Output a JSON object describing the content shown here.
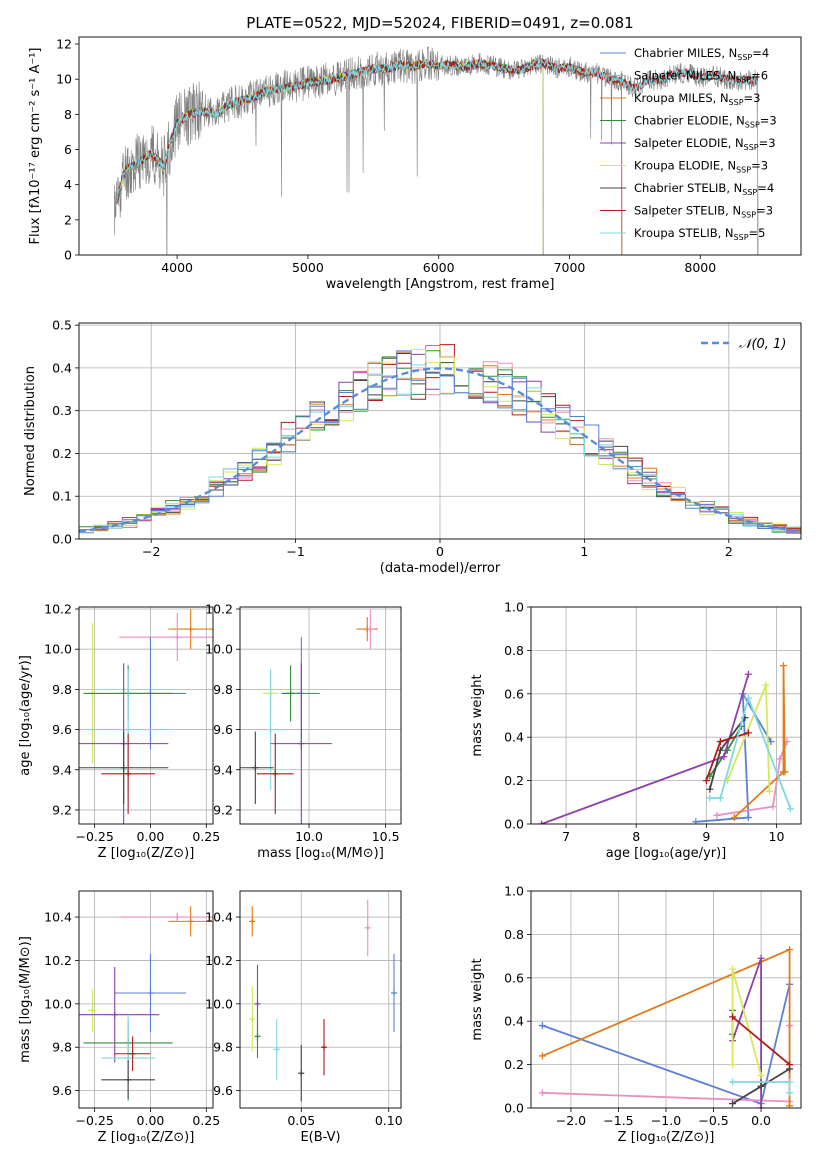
{
  "chart_data": [
    {
      "id": "spectrum",
      "type": "line",
      "title": "PLATE=0522, MJD=52024, FIBERID=0491, z=0.081",
      "xlabel": "wavelength [Angstrom, rest frame]",
      "ylabel": "Flux [fλ10⁻¹⁷ erg cm⁻² s⁻¹ A⁻¹]",
      "xlim": [
        3250,
        8770
      ],
      "ylim": [
        0,
        12.4
      ],
      "xticks": [
        4000,
        5000,
        6000,
        7000,
        8000
      ],
      "yticks": [
        0,
        2,
        4,
        6,
        8,
        10,
        12
      ],
      "grid": false,
      "legend_position": "right",
      "data_color": "#808080",
      "data_anchors": [
        [
          3520,
          2.5
        ],
        [
          3600,
          4.8
        ],
        [
          3700,
          5.2
        ],
        [
          3800,
          5.8
        ],
        [
          3900,
          5.0
        ],
        [
          3950,
          6.5
        ],
        [
          4000,
          7.5
        ],
        [
          4100,
          8.0
        ],
        [
          4200,
          8.2
        ],
        [
          4300,
          8.0
        ],
        [
          4400,
          8.6
        ],
        [
          4500,
          8.8
        ],
        [
          4600,
          9.0
        ],
        [
          4700,
          9.4
        ],
        [
          4800,
          9.5
        ],
        [
          4900,
          9.6
        ],
        [
          5000,
          9.8
        ],
        [
          5100,
          9.9
        ],
        [
          5200,
          10.0
        ],
        [
          5300,
          10.2
        ],
        [
          5400,
          10.4
        ],
        [
          5500,
          10.6
        ],
        [
          5600,
          10.6
        ],
        [
          5700,
          10.8
        ],
        [
          5800,
          10.7
        ],
        [
          5900,
          10.9
        ],
        [
          6000,
          10.8
        ],
        [
          6100,
          10.8
        ],
        [
          6200,
          10.7
        ],
        [
          6300,
          10.9
        ],
        [
          6400,
          10.8
        ],
        [
          6500,
          10.6
        ],
        [
          6600,
          10.5
        ],
        [
          6700,
          10.7
        ],
        [
          6800,
          10.9
        ],
        [
          6900,
          10.6
        ],
        [
          7000,
          10.7
        ],
        [
          7100,
          10.4
        ],
        [
          7200,
          10.4
        ],
        [
          7300,
          10.0
        ],
        [
          7400,
          9.9
        ],
        [
          7500,
          9.5
        ],
        [
          7600,
          9.9
        ],
        [
          7700,
          10.0
        ],
        [
          7800,
          10.3
        ],
        [
          7900,
          10.4
        ],
        [
          8000,
          10.1
        ],
        [
          8100,
          10.2
        ],
        [
          8200,
          10.0
        ],
        [
          8300,
          9.9
        ],
        [
          8440,
          10.0
        ]
      ],
      "model_series": [
        {
          "name": "Chabrier MILES, N_SSP=4",
          "color": "#5b7fd6",
          "xmax": 7400
        },
        {
          "name": "Salpeter MILES, N_SSP=6",
          "color": "#e98fc2",
          "xmax": 7400
        },
        {
          "name": "Kroupa MILES, N_SSP=3",
          "color": "#e07b1a",
          "xmax": 7400
        },
        {
          "name": "Chabrier ELODIE, N_SSP=3",
          "color": "#2f8f3a",
          "xmax": 6800
        },
        {
          "name": "Salpeter ELODIE, N_SSP=3",
          "color": "#8e3fa8",
          "xmax": 6800
        },
        {
          "name": "Kroupa ELODIE, N_SSP=3",
          "color": "#d4e85a",
          "xmax": 6800
        },
        {
          "name": "Chabrier STELIB, N_SSP=4",
          "color": "#444444",
          "xmax": 8440
        },
        {
          "name": "Salpeter STELIB, N_SSP=3",
          "color": "#b01a1a",
          "xmax": 8440
        },
        {
          "name": "Kroupa STELIB, N_SSP=5",
          "color": "#7fd8e0",
          "xmax": 8440
        }
      ],
      "legend_labels": [
        {
          "base": "Chabrier MILES, N",
          "sub": "SSP",
          "tail": "=4"
        },
        {
          "base": "Salpeter MILES, N",
          "sub": "SSP",
          "tail": "=6"
        },
        {
          "base": "Kroupa MILES, N",
          "sub": "SSP",
          "tail": "=3"
        },
        {
          "base": "Chabrier ELODIE, N",
          "sub": "SSP",
          "tail": "=3"
        },
        {
          "base": "Salpeter ELODIE, N",
          "sub": "SSP",
          "tail": "=3"
        },
        {
          "base": "Kroupa ELODIE, N",
          "sub": "SSP",
          "tail": "=3"
        },
        {
          "base": "Chabrier STELIB, N",
          "sub": "SSP",
          "tail": "=4"
        },
        {
          "base": "Salpeter STELIB, N",
          "sub": "SSP",
          "tail": "=3"
        },
        {
          "base": "Kroupa STELIB, N",
          "sub": "SSP",
          "tail": "=5"
        }
      ]
    },
    {
      "id": "residuals",
      "type": "line",
      "xlabel": "(data-model)/error",
      "ylabel": "Normed distribution",
      "xlim": [
        -2.5,
        2.5
      ],
      "ylim": [
        0,
        0.505
      ],
      "xticks": [
        -2,
        -1,
        0,
        1,
        2
      ],
      "yticks": [
        0.0,
        0.1,
        0.2,
        0.3,
        0.4,
        0.5
      ],
      "grid": true,
      "legend_position": "top-right",
      "gaussian": {
        "label": "𝒩(0, 1)",
        "mean": 0,
        "sigma": 1,
        "color": "#5b8bd6"
      },
      "bin_width": 0.1,
      "hist_series": [
        {
          "color": "#444444",
          "seed": 1
        },
        {
          "color": "#b01a1a",
          "seed": 2
        },
        {
          "color": "#8e3fa8",
          "seed": 3
        },
        {
          "color": "#e98fc2",
          "seed": 4
        },
        {
          "color": "#e07b1a",
          "seed": 5
        },
        {
          "color": "#2f8f3a",
          "seed": 6
        },
        {
          "color": "#d4e85a",
          "seed": 7
        },
        {
          "color": "#7fd8e0",
          "seed": 8
        },
        {
          "color": "#5b7fd6",
          "seed": 9
        }
      ]
    },
    {
      "id": "age_vs_Z",
      "type": "scatter",
      "xlabel": "Z [log₁₀(Z/Z⊙)]",
      "ylabel": "age  [log₁₀(age/yr)]",
      "xlim": [
        -0.32,
        0.28
      ],
      "ylim": [
        9.13,
        10.21
      ],
      "xticks": [
        -0.25,
        0.0,
        0.25
      ],
      "xtick_labels": [
        "−0.25",
        "0.00",
        "0.25"
      ],
      "yticks": [
        9.2,
        9.4,
        9.6,
        9.8,
        10.0,
        10.2
      ],
      "grid": true,
      "points": [
        {
          "color": "#e07b1a",
          "x": 0.18,
          "xerr": 0.1,
          "y": 10.1,
          "yerr": 0.1
        },
        {
          "color": "#e98fc2",
          "x": 0.12,
          "xerr": 0.26,
          "y": 10.06,
          "yerr": 0.12
        },
        {
          "color": "#5b7fd6",
          "x": 0.0,
          "xerr": 0.16,
          "y": 9.78,
          "yerr": 0.28
        },
        {
          "color": "#d4e85a",
          "x": -0.26,
          "xerr": 0.02,
          "y": 9.78,
          "yerr": 0.35
        },
        {
          "color": "#2f8f3a",
          "x": -0.1,
          "xerr": 0.2,
          "y": 9.78,
          "yerr": 0.14
        },
        {
          "color": "#7fd8e0",
          "x": -0.1,
          "xerr": 0.2,
          "y": 9.6,
          "yerr": 0.3
        },
        {
          "color": "#8e3fa8",
          "x": -0.12,
          "xerr": 0.2,
          "y": 9.53,
          "yerr": 0.4
        },
        {
          "color": "#444444",
          "x": -0.12,
          "xerr": 0.2,
          "y": 9.41,
          "yerr": 0.18
        },
        {
          "color": "#b01a1a",
          "x": -0.1,
          "xerr": 0.12,
          "y": 9.38,
          "yerr": 0.2
        }
      ]
    },
    {
      "id": "age_vs_mass",
      "type": "scatter",
      "xlabel": "mass [log₁₀(M/M⊙)]",
      "xlim": [
        9.55,
        10.6
      ],
      "ylim": [
        9.13,
        10.21
      ],
      "xticks": [
        10.0,
        10.5
      ],
      "xtick_labels": [
        "10.0",
        "10.5"
      ],
      "yticks": [
        9.2,
        9.4,
        9.6,
        9.8,
        10.0,
        10.2
      ],
      "grid": true,
      "points": [
        {
          "color": "#e07b1a",
          "x": 10.38,
          "xerr": 0.07,
          "y": 10.1,
          "yerr": 0.06
        },
        {
          "color": "#e98fc2",
          "x": 10.4,
          "xerr": 0.02,
          "y": 10.1,
          "yerr": 0.1
        },
        {
          "color": "#5b7fd6",
          "x": 9.95,
          "xerr": 0.12,
          "y": 9.78,
          "yerr": 0.28
        },
        {
          "color": "#d4e85a",
          "x": 9.75,
          "xerr": 0.05,
          "y": 9.78,
          "yerr": 0.1
        },
        {
          "color": "#2f8f3a",
          "x": 9.88,
          "xerr": 0.06,
          "y": 9.78,
          "yerr": 0.14
        },
        {
          "color": "#7fd8e0",
          "x": 9.75,
          "xerr": 0.1,
          "y": 9.6,
          "yerr": 0.3
        },
        {
          "color": "#8e3fa8",
          "x": 9.95,
          "xerr": 0.2,
          "y": 9.53,
          "yerr": 0.4
        },
        {
          "color": "#444444",
          "x": 9.65,
          "xerr": 0.12,
          "y": 9.41,
          "yerr": 0.18
        },
        {
          "color": "#b01a1a",
          "x": 9.78,
          "xerr": 0.12,
          "y": 9.38,
          "yerr": 0.2
        }
      ]
    },
    {
      "id": "mass_weight_vs_age",
      "type": "line",
      "xlabel": "age  [log₁₀(age/yr)]",
      "ylabel": "mass weight",
      "xlim": [
        6.5,
        10.35
      ],
      "ylim": [
        0,
        1
      ],
      "xticks": [
        7,
        8,
        9,
        10
      ],
      "yticks": [
        0.0,
        0.2,
        0.4,
        0.6,
        0.8,
        1.0
      ],
      "grid": true,
      "series": [
        {
          "color": "#5b7fd6",
          "x": [
            8.85,
            9.6,
            9.52,
            9.92
          ],
          "y": [
            0.01,
            0.03,
            0.6,
            0.38
          ]
        },
        {
          "color": "#e98fc2",
          "x": [
            9.15,
            9.95,
            10.05,
            10.15
          ],
          "y": [
            0.04,
            0.08,
            0.3,
            0.38
          ]
        },
        {
          "color": "#e07b1a",
          "x": [
            9.4,
            10.1,
            10.1,
            10.12
          ],
          "y": [
            0.03,
            0.24,
            0.73,
            0.24
          ]
        },
        {
          "color": "#2f8f3a",
          "x": [
            9.05,
            9.3,
            9.5
          ],
          "y": [
            0.22,
            0.34,
            0.45
          ]
        },
        {
          "color": "#8e3fa8",
          "x": [
            6.65,
            9.25,
            9.6
          ],
          "y": [
            0.0,
            0.31,
            0.69
          ]
        },
        {
          "color": "#d4e85a",
          "x": [
            9.3,
            9.85,
            9.9
          ],
          "y": [
            0.2,
            0.64,
            0.15
          ]
        },
        {
          "color": "#444444",
          "x": [
            9.05,
            9.2,
            9.55
          ],
          "y": [
            0.16,
            0.34,
            0.49
          ]
        },
        {
          "color": "#b01a1a",
          "x": [
            9.0,
            9.2,
            9.6
          ],
          "y": [
            0.2,
            0.38,
            0.42
          ]
        },
        {
          "color": "#7fd8e0",
          "x": [
            9.05,
            9.2,
            9.6,
            10.2
          ],
          "y": [
            0.12,
            0.12,
            0.58,
            0.07
          ]
        }
      ]
    },
    {
      "id": "mass_vs_Z",
      "type": "scatter",
      "xlabel": "Z [log₁₀(Z/Z⊙)]",
      "ylabel": "mass [log₁₀(M/M⊙)]",
      "xlim": [
        -0.32,
        0.28
      ],
      "ylim": [
        9.52,
        10.52
      ],
      "xticks": [
        -0.25,
        0.0,
        0.25
      ],
      "xtick_labels": [
        "−0.25",
        "0.00",
        "0.25"
      ],
      "yticks": [
        9.6,
        9.8,
        10.0,
        10.2,
        10.4
      ],
      "grid": true,
      "points": [
        {
          "color": "#e07b1a",
          "x": 0.18,
          "xerr": 0.1,
          "y": 10.38,
          "yerr": 0.07
        },
        {
          "color": "#e98fc2",
          "x": 0.12,
          "xerr": 0.26,
          "y": 10.4,
          "yerr": 0.02
        },
        {
          "color": "#5b7fd6",
          "x": 0.0,
          "xerr": 0.16,
          "y": 10.05,
          "yerr": 0.18
        },
        {
          "color": "#d4e85a",
          "x": -0.26,
          "xerr": 0.02,
          "y": 9.97,
          "yerr": 0.1
        },
        {
          "color": "#8e3fa8",
          "x": -0.16,
          "xerr": 0.2,
          "y": 9.95,
          "yerr": 0.22
        },
        {
          "color": "#2f8f3a",
          "x": -0.1,
          "xerr": 0.2,
          "y": 9.82,
          "yerr": 0.1
        },
        {
          "color": "#7fd8e0",
          "x": -0.1,
          "xerr": 0.12,
          "y": 9.75,
          "yerr": 0.2
        },
        {
          "color": "#b01a1a",
          "x": -0.08,
          "xerr": 0.08,
          "y": 9.77,
          "yerr": 0.08
        },
        {
          "color": "#444444",
          "x": -0.1,
          "xerr": 0.12,
          "y": 9.65,
          "yerr": 0.09
        }
      ]
    },
    {
      "id": "mass_vs_ebv",
      "type": "scatter",
      "xlabel": "E(B-V)",
      "xlim": [
        0.015,
        0.107
      ],
      "ylim": [
        9.52,
        10.52
      ],
      "xticks": [
        0.05,
        0.1
      ],
      "xtick_labels": [
        "0.05",
        "0.10"
      ],
      "yticks": [
        9.6,
        9.8,
        10.0,
        10.2,
        10.4
      ],
      "grid": true,
      "points": [
        {
          "color": "#e07b1a",
          "x": 0.022,
          "xerr": 0,
          "y": 10.38,
          "yerr": 0.07
        },
        {
          "color": "#e98fc2",
          "x": 0.088,
          "xerr": 0,
          "y": 10.35,
          "yerr": 0.13
        },
        {
          "color": "#5b7fd6",
          "x": 0.103,
          "xerr": 0,
          "y": 10.05,
          "yerr": 0.18
        },
        {
          "color": "#8e3fa8",
          "x": 0.025,
          "xerr": 0,
          "y": 10.0,
          "yerr": 0.18
        },
        {
          "color": "#d4e85a",
          "x": 0.022,
          "xerr": 0,
          "y": 9.93,
          "yerr": 0.15
        },
        {
          "color": "#2f8f3a",
          "x": 0.025,
          "xerr": 0,
          "y": 9.85,
          "yerr": 0.1
        },
        {
          "color": "#7fd8e0",
          "x": 0.036,
          "xerr": 0,
          "y": 9.79,
          "yerr": 0.14
        },
        {
          "color": "#b01a1a",
          "x": 0.063,
          "xerr": 0,
          "y": 9.8,
          "yerr": 0.13
        },
        {
          "color": "#444444",
          "x": 0.05,
          "xerr": 0,
          "y": 9.68,
          "yerr": 0.13
        }
      ]
    },
    {
      "id": "mass_weight_vs_Z",
      "type": "line",
      "xlabel": "Z [log₁₀(Z/Z⊙)]",
      "ylabel": "mass weight",
      "xlim": [
        -2.42,
        0.42
      ],
      "ylim": [
        0,
        1
      ],
      "xticks": [
        -2.0,
        -1.5,
        -1.0,
        -0.5,
        0.0
      ],
      "xtick_labels": [
        "−2.0",
        "−1.5",
        "−1.0",
        "−0.5",
        "0.0"
      ],
      "yticks": [
        0.0,
        0.2,
        0.4,
        0.6,
        0.8,
        1.0
      ],
      "grid": true,
      "series": [
        {
          "color": "#5b7fd6",
          "x": [
            -2.3,
            0.0,
            0.3
          ],
          "y": [
            0.38,
            0.02,
            0.57
          ]
        },
        {
          "color": "#e98fc2",
          "x": [
            -2.3,
            0.3,
            0.3
          ],
          "y": [
            0.07,
            0.03,
            0.38
          ]
        },
        {
          "color": "#e07b1a",
          "x": [
            -2.3,
            0.3,
            0.3
          ],
          "y": [
            0.24,
            0.73,
            0.01
          ]
        },
        {
          "color": "#2f8f3a",
          "x": [
            -0.3,
            -0.3
          ],
          "y": [
            0.34,
            0.45
          ]
        },
        {
          "color": "#8e3fa8",
          "x": [
            -0.3,
            0.0,
            0.0
          ],
          "y": [
            0.31,
            0.69,
            0.0
          ]
        },
        {
          "color": "#d4e85a",
          "x": [
            -0.3,
            -0.3,
            0.0
          ],
          "y": [
            0.2,
            0.64,
            0.15
          ]
        },
        {
          "color": "#444444",
          "x": [
            -0.3,
            0.0,
            0.3
          ],
          "y": [
            0.02,
            0.1,
            0.18
          ]
        },
        {
          "color": "#b01a1a",
          "x": [
            -0.3,
            0.3
          ],
          "y": [
            0.42,
            0.2
          ]
        },
        {
          "color": "#7fd8e0",
          "x": [
            -0.3,
            0.3,
            0.3
          ],
          "y": [
            0.12,
            0.12,
            0.07
          ]
        }
      ]
    }
  ]
}
